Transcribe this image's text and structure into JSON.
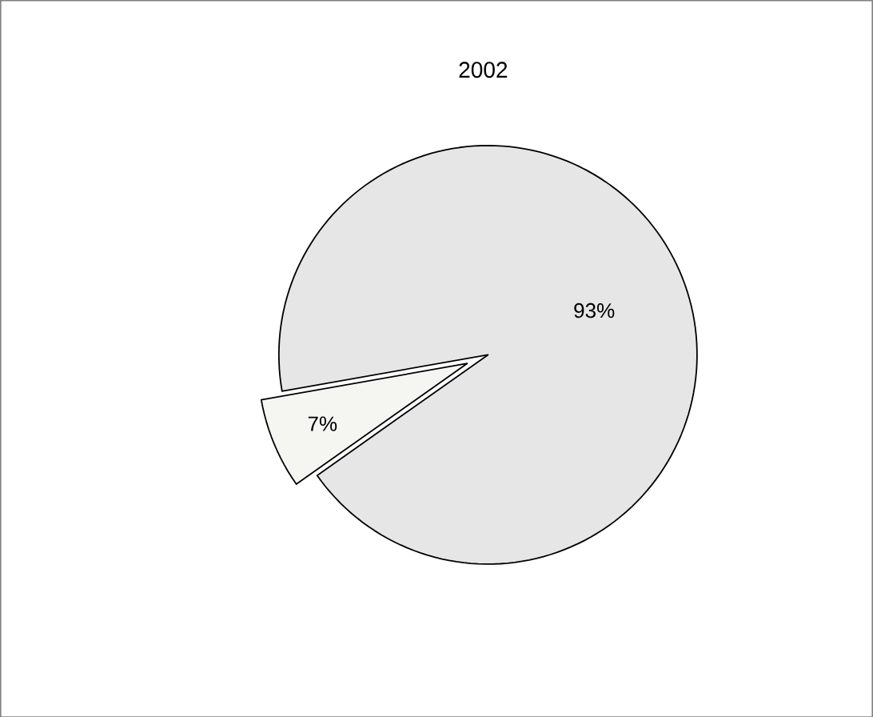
{
  "chart_data": {
    "type": "pie",
    "title": "2002",
    "categories": [
      null,
      null
    ],
    "values": [
      93,
      7
    ],
    "colors": [
      "#e6e6e6",
      "#f5f5f2"
    ],
    "data_labels": true,
    "value_labels": [
      "93%",
      "7%"
    ]
  }
}
